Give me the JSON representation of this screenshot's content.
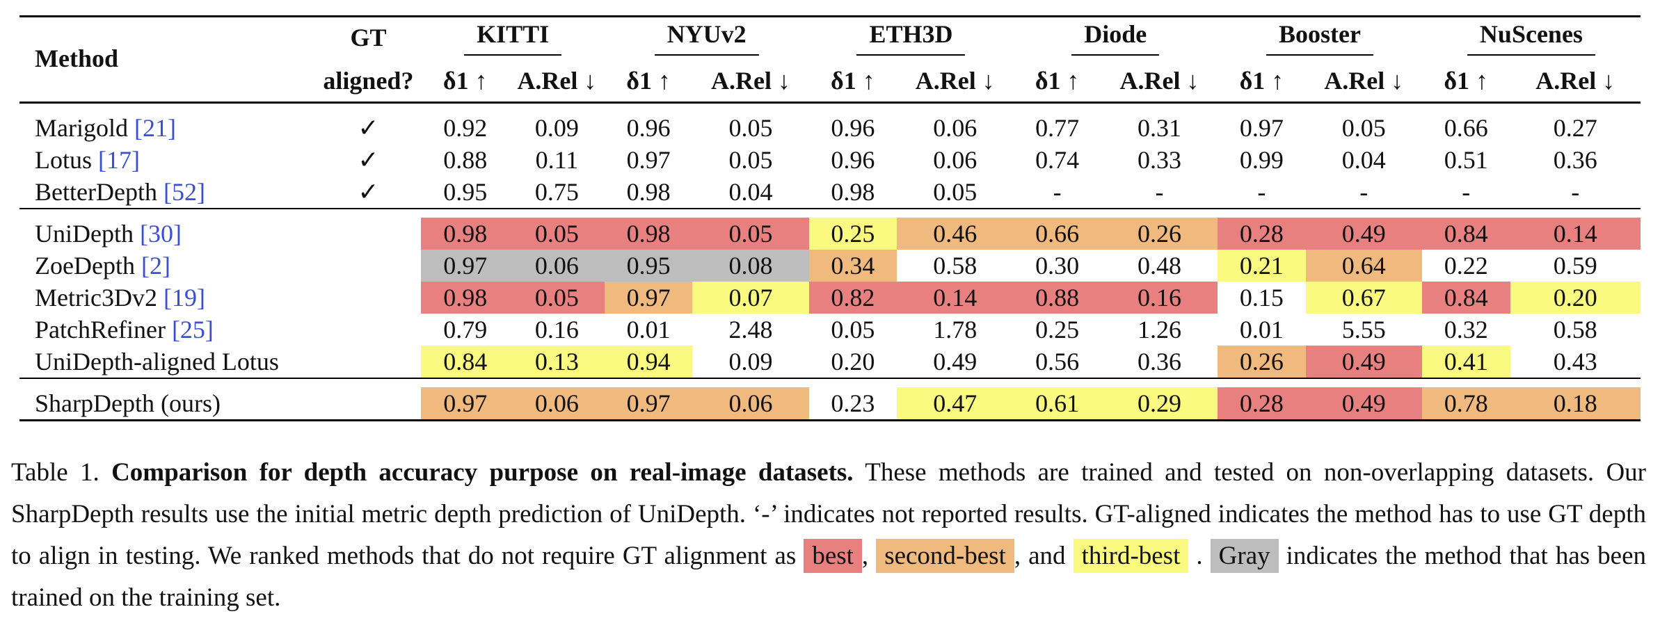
{
  "table": {
    "header": {
      "method": "Method",
      "gt_line1": "GT",
      "gt_line2": "aligned?",
      "datasets": [
        "KITTI",
        "NYUv2",
        "ETH3D",
        "Diode",
        "Booster",
        "NuScenes"
      ],
      "metric_delta": "δ1 ↑",
      "metric_arel": "A.Rel ↓"
    },
    "groups": [
      {
        "rows": [
          {
            "name": "Marigold",
            "cite": "[21]",
            "gt": "✓",
            "values": [
              "0.92",
              "0.09",
              "0.96",
              "0.05",
              "0.96",
              "0.06",
              "0.77",
              "0.31",
              "0.97",
              "0.05",
              "0.66",
              "0.27"
            ],
            "colors": [
              "",
              "",
              "",
              "",
              "",
              "",
              "",
              "",
              "",
              "",
              "",
              ""
            ]
          },
          {
            "name": "Lotus",
            "cite": "[17]",
            "gt": "✓",
            "values": [
              "0.88",
              "0.11",
              "0.97",
              "0.05",
              "0.96",
              "0.06",
              "0.74",
              "0.33",
              "0.99",
              "0.04",
              "0.51",
              "0.36"
            ],
            "colors": [
              "",
              "",
              "",
              "",
              "",
              "",
              "",
              "",
              "",
              "",
              "",
              ""
            ]
          },
          {
            "name": "BetterDepth",
            "cite": "[52]",
            "gt": "✓",
            "values": [
              "0.95",
              "0.75",
              "0.98",
              "0.04",
              "0.98",
              "0.05",
              "-",
              "-",
              "-",
              "-",
              "-",
              "-"
            ],
            "colors": [
              "",
              "",
              "",
              "",
              "",
              "",
              "",
              "",
              "",
              "",
              "",
              ""
            ]
          }
        ]
      },
      {
        "rows": [
          {
            "name": "UniDepth",
            "cite": "[30]",
            "gt": "",
            "values": [
              "0.98",
              "0.05",
              "0.98",
              "0.05",
              "0.25",
              "0.46",
              "0.66",
              "0.26",
              "0.28",
              "0.49",
              "0.84",
              "0.14"
            ],
            "colors": [
              "best",
              "best",
              "best",
              "best",
              "third",
              "second",
              "second",
              "second",
              "best",
              "best",
              "best",
              "best"
            ]
          },
          {
            "name": "ZoeDepth",
            "cite": "[2]",
            "gt": "",
            "values": [
              "0.97",
              "0.06",
              "0.95",
              "0.08",
              "0.34",
              "0.58",
              "0.30",
              "0.48",
              "0.21",
              "0.64",
              "0.22",
              "0.59"
            ],
            "colors": [
              "gray",
              "gray",
              "gray",
              "gray",
              "second",
              "",
              "",
              "",
              "third",
              "second",
              "",
              ""
            ]
          },
          {
            "name": "Metric3Dv2",
            "cite": "[19]",
            "gt": "",
            "values": [
              "0.98",
              "0.05",
              "0.97",
              "0.07",
              "0.82",
              "0.14",
              "0.88",
              "0.16",
              "0.15",
              "0.67",
              "0.84",
              "0.20"
            ],
            "colors": [
              "best",
              "best",
              "second",
              "third",
              "best",
              "best",
              "best",
              "best",
              "",
              "third",
              "best",
              "third"
            ]
          },
          {
            "name": "PatchRefiner",
            "cite": "[25]",
            "gt": "",
            "values": [
              "0.79",
              "0.16",
              "0.01",
              "2.48",
              "0.05",
              "1.78",
              "0.25",
              "1.26",
              "0.01",
              "5.55",
              "0.32",
              "0.58"
            ],
            "colors": [
              "",
              "",
              "",
              "",
              "",
              "",
              "",
              "",
              "",
              "",
              "",
              ""
            ]
          },
          {
            "name": "UniDepth-aligned Lotus",
            "cite": "",
            "gt": "",
            "values": [
              "0.84",
              "0.13",
              "0.94",
              "0.09",
              "0.20",
              "0.49",
              "0.56",
              "0.36",
              "0.26",
              "0.49",
              "0.41",
              "0.43"
            ],
            "colors": [
              "third",
              "third",
              "third",
              "",
              "",
              "",
              "",
              "",
              "second",
              "best",
              "third",
              ""
            ]
          }
        ]
      },
      {
        "rows": [
          {
            "name": "SharpDepth (ours)",
            "cite": "",
            "gt": "",
            "values": [
              "0.97",
              "0.06",
              "0.97",
              "0.06",
              "0.23",
              "0.47",
              "0.61",
              "0.29",
              "0.28",
              "0.49",
              "0.78",
              "0.18"
            ],
            "colors": [
              "second",
              "second",
              "second",
              "second",
              "",
              "third",
              "third",
              "third",
              "best",
              "best",
              "second",
              "second"
            ]
          }
        ]
      }
    ]
  },
  "caption": {
    "label": "Table 1.",
    "title": "Comparison for depth accuracy purpose on real-image datasets.",
    "text1": " These methods are trained and tested on non-overlapping datasets. Our SharpDepth results use the initial metric depth prediction of UniDepth. ‘-’ indicates not reported results. GT-aligned indicates the method has to use GT depth to align in testing. We ranked methods that do not require GT alignment as ",
    "best": "best",
    "sep1": ", ",
    "second": "second-best",
    "sep2": ", and ",
    "third": "third-best",
    "sep3": " . ",
    "gray": "Gray",
    "text2": " indicates the method that has been trained on the training set."
  },
  "colors": {
    "best": "#e88080",
    "second": "#f0b97e",
    "third": "#fbfa80",
    "gray": "#bdbdbd",
    "citation": "#3b4fd6"
  }
}
